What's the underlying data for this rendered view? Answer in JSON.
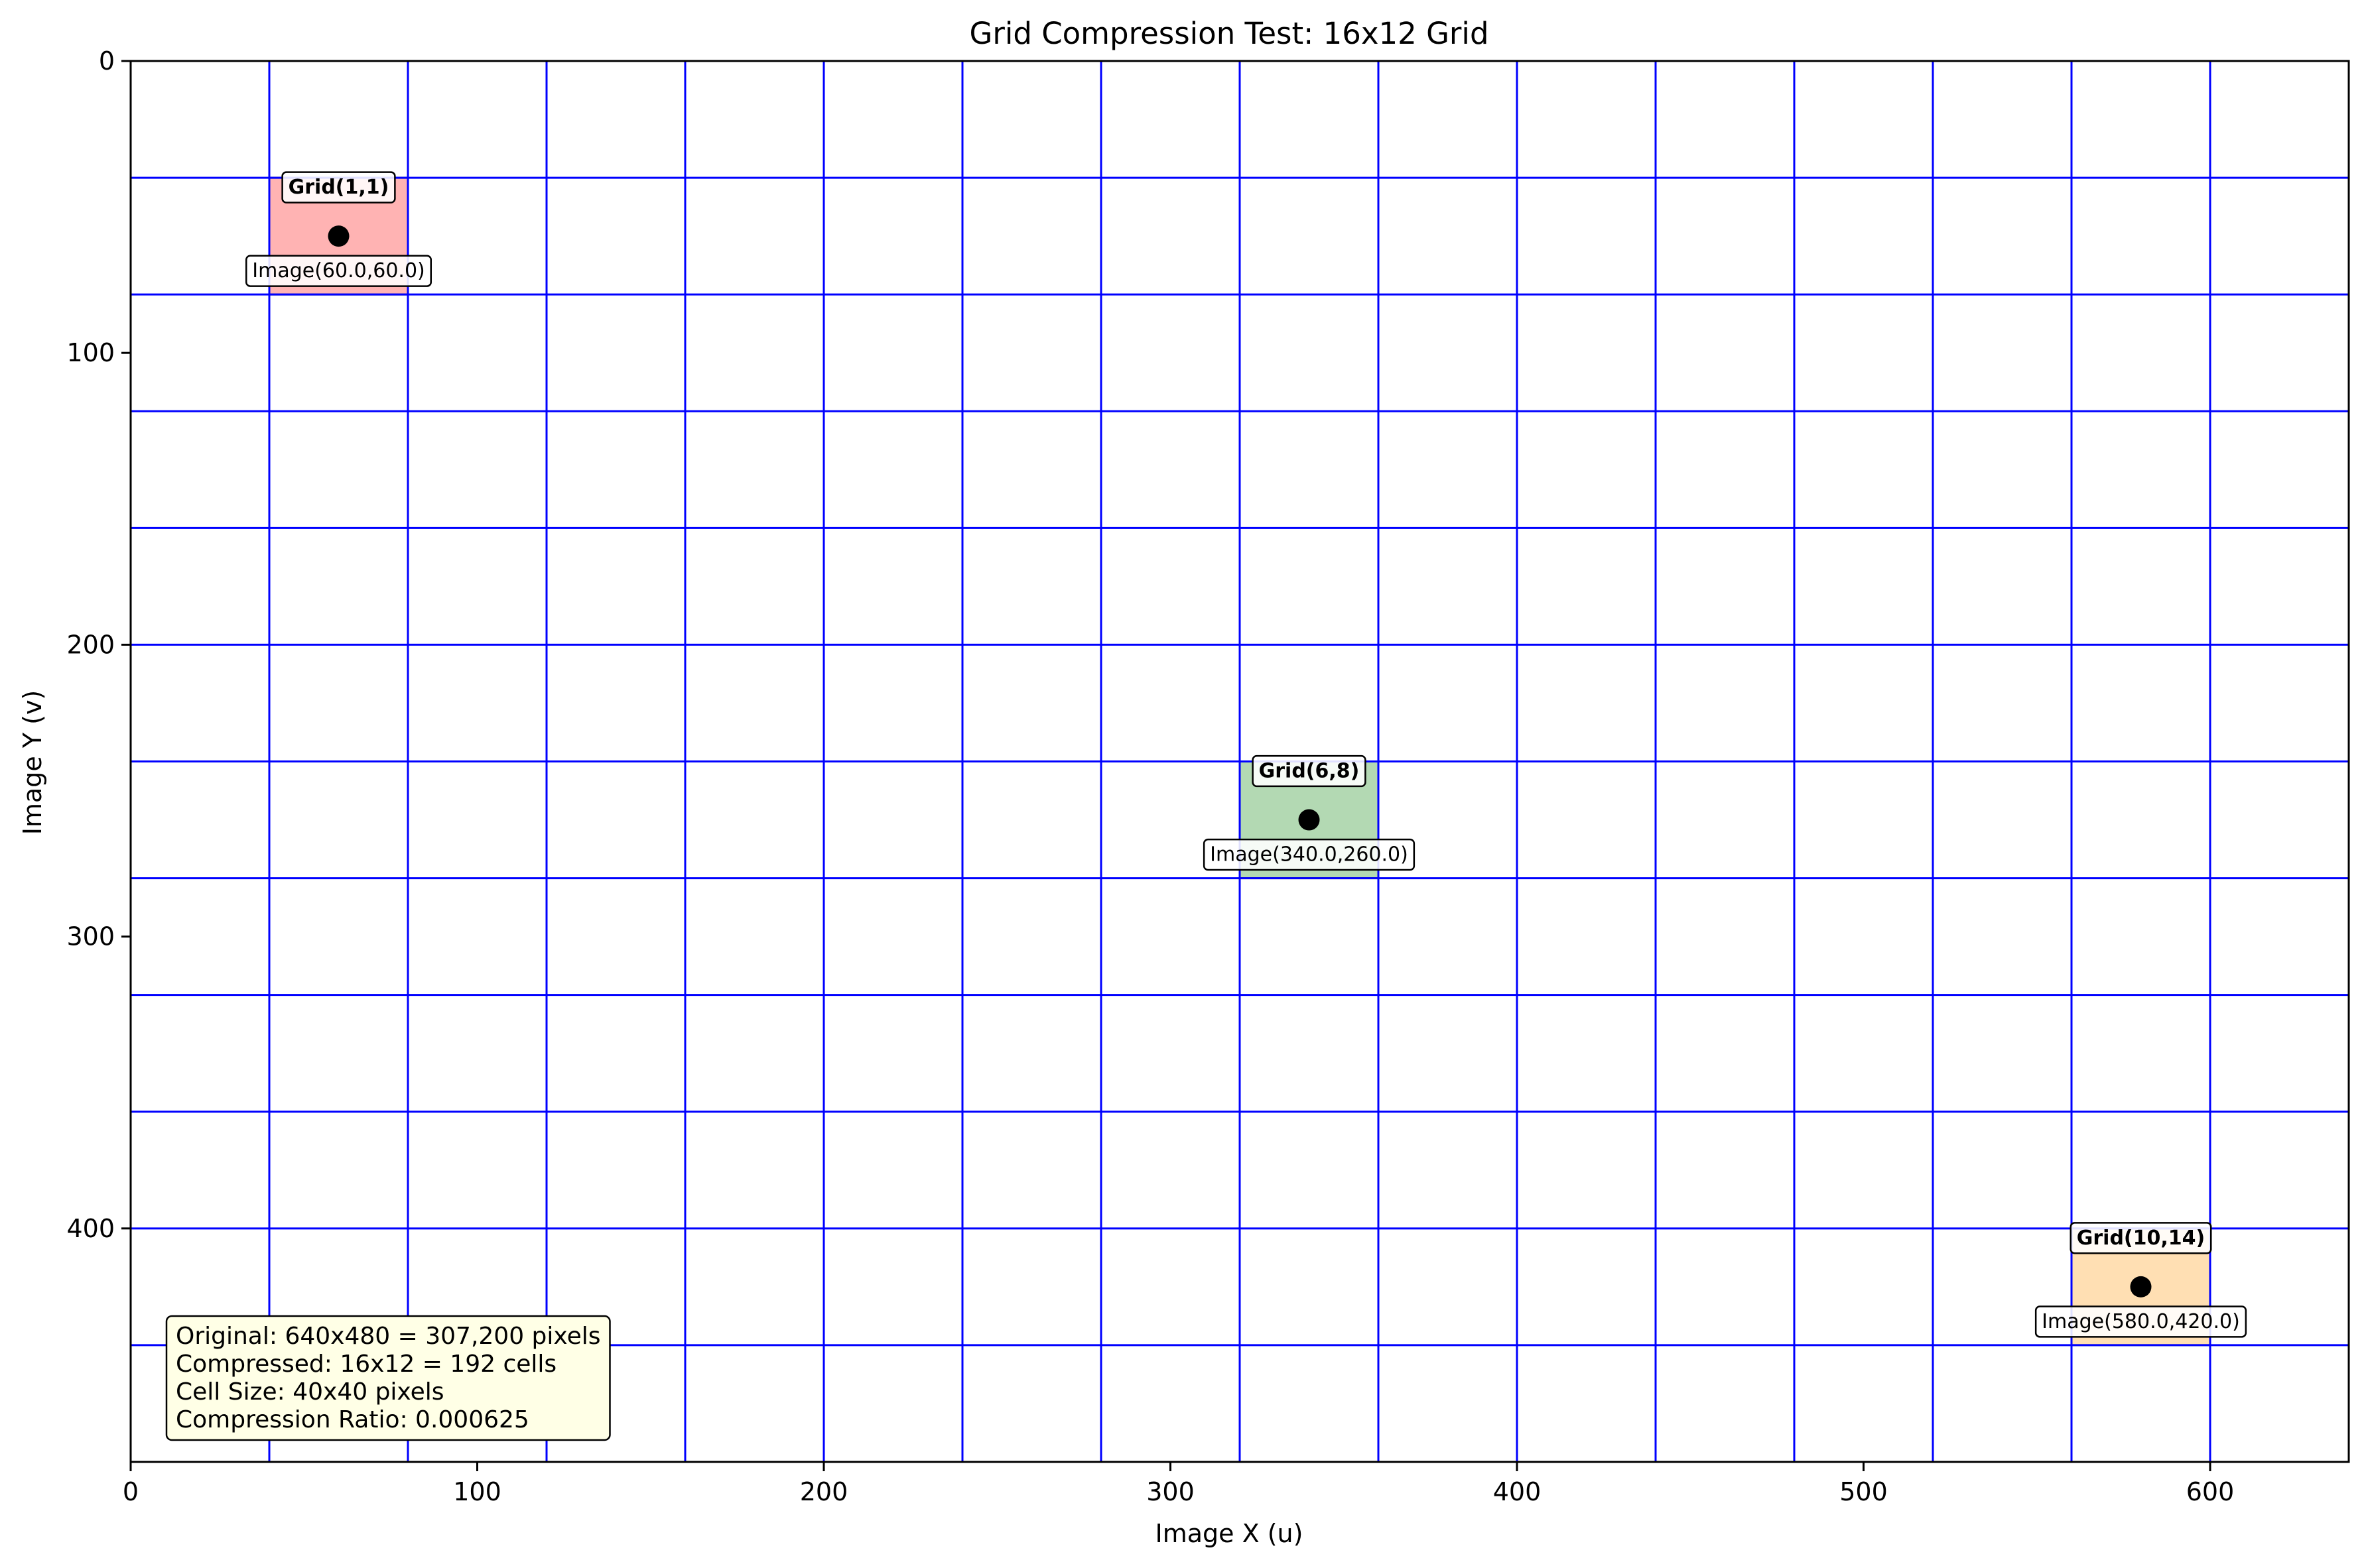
{
  "chart_data": {
    "type": "scatter",
    "title": "Grid Compression Test: 16x12 Grid",
    "xlabel": "Image X (u)",
    "ylabel": "Image Y (v)",
    "xlim": [
      0,
      640
    ],
    "ylim": [
      480,
      0
    ],
    "y_inverted": true,
    "x_ticks": [
      0,
      100,
      200,
      300,
      400,
      500,
      600
    ],
    "y_ticks": [
      0,
      100,
      200,
      300,
      400
    ],
    "grid": {
      "cols": 16,
      "rows": 12,
      "cell_size": 40,
      "color": "#0000ff"
    },
    "points": [
      {
        "x": 60,
        "y": 60,
        "grid_label": "Grid(1,1)",
        "image_label": "Image(60.0,60.0)",
        "cell_x": [
          40,
          80
        ],
        "cell_y": [
          40,
          80
        ],
        "cell_color": "#ffb3b3"
      },
      {
        "x": 340,
        "y": 260,
        "grid_label": "Grid(6,8)",
        "image_label": "Image(340.0,260.0)",
        "cell_x": [
          320,
          360
        ],
        "cell_y": [
          240,
          280
        ],
        "cell_color": "#b3d9b3"
      },
      {
        "x": 580,
        "y": 420,
        "grid_label": "Grid(10,14)",
        "image_label": "Image(580.0,420.0)",
        "cell_x": [
          560,
          600
        ],
        "cell_y": [
          400,
          440
        ],
        "cell_color": "#ffdfb3"
      }
    ],
    "point_color": "#000000",
    "info_box": {
      "lines": [
        "Original: 640x480 = 307,200 pixels",
        "Compressed: 16x12 = 192 cells",
        "Cell Size: 40x40 pixels",
        "Compression Ratio: 0.000625"
      ],
      "placement": "bottom-left",
      "background": "#ffffe6"
    }
  }
}
